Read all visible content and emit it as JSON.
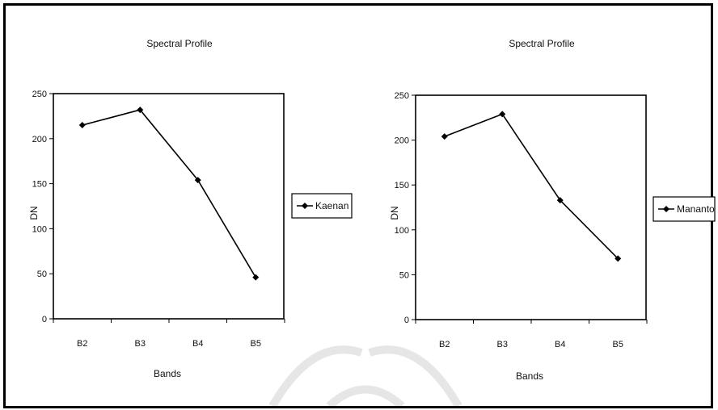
{
  "chart_data": [
    {
      "type": "line",
      "title": "Spectral Profile",
      "xlabel": "Bands",
      "ylabel": "DN",
      "categories": [
        "B2",
        "B3",
        "B4",
        "B5"
      ],
      "yticks": [
        0,
        50,
        100,
        150,
        200,
        250
      ],
      "ylim": [
        0,
        250
      ],
      "grid": false,
      "legend_position": "right",
      "series": [
        {
          "name": "Kaenan",
          "values": [
            215,
            232,
            154,
            46
          ],
          "color": "#000000"
        }
      ]
    },
    {
      "type": "line",
      "title": "Spectral Profile",
      "xlabel": "Bands",
      "ylabel": "DN",
      "categories": [
        "B2",
        "B3",
        "B4",
        "B5"
      ],
      "yticks": [
        0,
        50,
        100,
        150,
        200,
        250
      ],
      "ylim": [
        0,
        250
      ],
      "grid": false,
      "legend_position": "right",
      "series": [
        {
          "name": "Mananto",
          "values": [
            204,
            229,
            133,
            68
          ],
          "color": "#000000"
        }
      ]
    }
  ]
}
